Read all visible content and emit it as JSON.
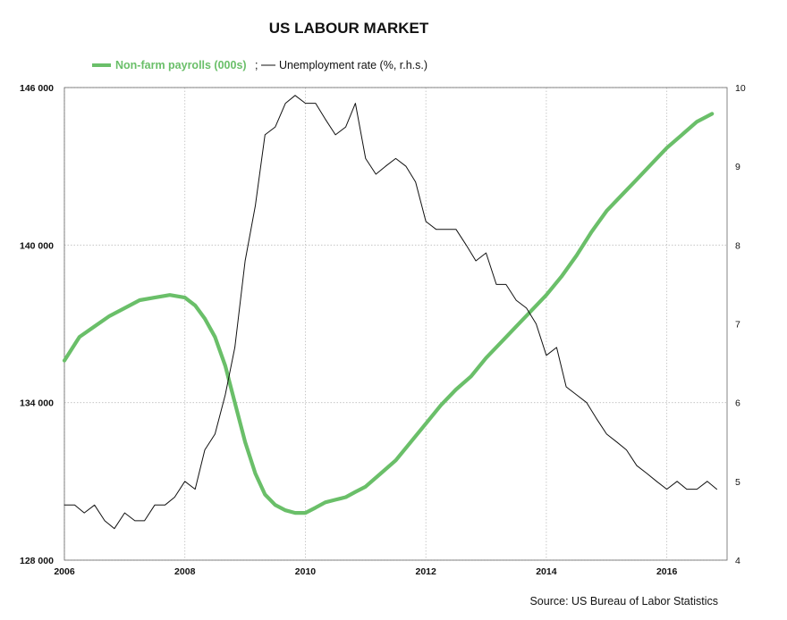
{
  "chart_data": {
    "type": "line",
    "title": "US LABOUR MARKET",
    "source": "Source: US Bureau of Labor Statistics",
    "legend": {
      "payrolls": "Non-farm payrolls (000s)",
      "separator": ";",
      "unemployment": "Unemployment rate (%, r.h.s.)"
    },
    "x_ticks": [
      "2006",
      "2008",
      "2010",
      "2012",
      "2014",
      "2016"
    ],
    "xlim": [
      2006,
      2017
    ],
    "y_left": {
      "ticks": [
        "128 000",
        "134 000",
        "140 000",
        "146 000"
      ],
      "lim": [
        128000,
        146000
      ]
    },
    "y_right": {
      "ticks": [
        "4",
        "5",
        "6",
        "7",
        "8",
        "9",
        "10"
      ],
      "lim": [
        4,
        10
      ]
    },
    "grid": true,
    "series": [
      {
        "name": "Non-farm payrolls (000s)",
        "axis": "left",
        "color": "#6abf69",
        "x": [
          2006.0,
          2006.25,
          2006.5,
          2006.75,
          2007.0,
          2007.25,
          2007.5,
          2007.75,
          2008.0,
          2008.17,
          2008.33,
          2008.5,
          2008.67,
          2008.83,
          2009.0,
          2009.17,
          2009.33,
          2009.5,
          2009.67,
          2009.83,
          2010.0,
          2010.17,
          2010.33,
          2010.5,
          2010.67,
          2010.83,
          2011.0,
          2011.25,
          2011.5,
          2011.75,
          2012.0,
          2012.25,
          2012.5,
          2012.75,
          2013.0,
          2013.25,
          2013.5,
          2013.75,
          2014.0,
          2014.25,
          2014.5,
          2014.75,
          2015.0,
          2015.25,
          2015.5,
          2015.75,
          2016.0,
          2016.25,
          2016.5,
          2016.75
        ],
        "values": [
          135600,
          136500,
          136900,
          137300,
          137600,
          137900,
          138000,
          138100,
          138000,
          137700,
          137200,
          136500,
          135400,
          134000,
          132500,
          131300,
          130500,
          130100,
          129900,
          129800,
          129800,
          130000,
          130200,
          130300,
          130400,
          130600,
          130800,
          131300,
          131800,
          132500,
          133200,
          133900,
          134500,
          135000,
          135700,
          136300,
          136900,
          137500,
          138100,
          138800,
          139600,
          140500,
          141300,
          141900,
          142500,
          143100,
          143700,
          144200,
          144700,
          145000
        ]
      },
      {
        "name": "Unemployment rate (%, r.h.s.)",
        "axis": "right",
        "color": "#111111",
        "x": [
          2006.0,
          2006.17,
          2006.33,
          2006.5,
          2006.67,
          2006.83,
          2007.0,
          2007.17,
          2007.33,
          2007.5,
          2007.67,
          2007.83,
          2008.0,
          2008.17,
          2008.33,
          2008.5,
          2008.67,
          2008.83,
          2009.0,
          2009.17,
          2009.33,
          2009.5,
          2009.67,
          2009.83,
          2010.0,
          2010.17,
          2010.33,
          2010.5,
          2010.67,
          2010.83,
          2011.0,
          2011.17,
          2011.33,
          2011.5,
          2011.67,
          2011.83,
          2012.0,
          2012.17,
          2012.33,
          2012.5,
          2012.67,
          2012.83,
          2013.0,
          2013.17,
          2013.33,
          2013.5,
          2013.67,
          2013.83,
          2014.0,
          2014.17,
          2014.33,
          2014.5,
          2014.67,
          2014.83,
          2015.0,
          2015.17,
          2015.33,
          2015.5,
          2015.67,
          2015.83,
          2016.0,
          2016.17,
          2016.33,
          2016.5,
          2016.67,
          2016.83
        ],
        "values": [
          4.7,
          4.7,
          4.6,
          4.7,
          4.5,
          4.4,
          4.6,
          4.5,
          4.5,
          4.7,
          4.7,
          4.8,
          5.0,
          4.9,
          5.4,
          5.6,
          6.1,
          6.7,
          7.8,
          8.5,
          9.4,
          9.5,
          9.8,
          9.9,
          9.8,
          9.8,
          9.6,
          9.4,
          9.5,
          9.8,
          9.1,
          8.9,
          9.0,
          9.1,
          9.0,
          8.8,
          8.3,
          8.2,
          8.2,
          8.2,
          8.0,
          7.8,
          7.9,
          7.5,
          7.5,
          7.3,
          7.2,
          7.0,
          6.6,
          6.7,
          6.2,
          6.1,
          6.0,
          5.8,
          5.6,
          5.5,
          5.4,
          5.2,
          5.1,
          5.0,
          4.9,
          5.0,
          4.9,
          4.9,
          5.0,
          4.9
        ]
      }
    ]
  }
}
